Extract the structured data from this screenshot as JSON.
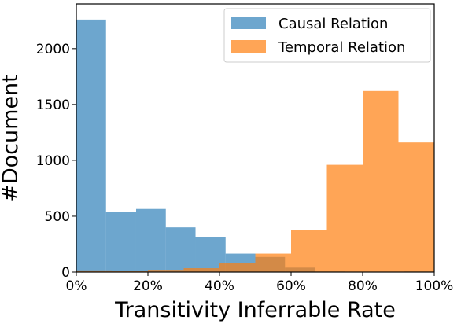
{
  "chart_data": {
    "type": "histogram",
    "xlabel": "Transitivity Inferrable Rate",
    "ylabel": "#Document",
    "xlim": [
      0,
      1
    ],
    "ylim": [
      0,
      2400
    ],
    "x_ticks": [
      {
        "value": 0.0,
        "label": "0%"
      },
      {
        "value": 0.2,
        "label": "20%"
      },
      {
        "value": 0.4,
        "label": "40%"
      },
      {
        "value": 0.6,
        "label": "60%"
      },
      {
        "value": 0.8,
        "label": "80%"
      },
      {
        "value": 1.0,
        "label": "100%"
      }
    ],
    "y_ticks": [
      {
        "value": 0,
        "label": "0"
      },
      {
        "value": 500,
        "label": "500"
      },
      {
        "value": 1000,
        "label": "1000"
      },
      {
        "value": 1500,
        "label": "1500"
      },
      {
        "value": 2000,
        "label": "2000"
      }
    ],
    "legend_position": "top-right",
    "grid": false,
    "series": [
      {
        "name": "Causal Relation",
        "color": "#1f77b4",
        "opacity": 0.65,
        "bins": [
          {
            "start": 0.0,
            "end": 0.083,
            "count": 2260
          },
          {
            "start": 0.083,
            "end": 0.167,
            "count": 540
          },
          {
            "start": 0.167,
            "end": 0.25,
            "count": 565
          },
          {
            "start": 0.25,
            "end": 0.333,
            "count": 400
          },
          {
            "start": 0.333,
            "end": 0.417,
            "count": 310
          },
          {
            "start": 0.417,
            "end": 0.5,
            "count": 165
          },
          {
            "start": 0.5,
            "end": 0.583,
            "count": 135
          },
          {
            "start": 0.583,
            "end": 0.667,
            "count": 40
          },
          {
            "start": 0.667,
            "end": 0.75,
            "count": 5
          },
          {
            "start": 0.75,
            "end": 0.833,
            "count": 2
          },
          {
            "start": 0.833,
            "end": 0.917,
            "count": 1
          },
          {
            "start": 0.917,
            "end": 1.0,
            "count": 5
          }
        ]
      },
      {
        "name": "Temporal Relation",
        "color": "#ff7f0e",
        "opacity": 0.7,
        "bins": [
          {
            "start": 0.0,
            "end": 0.1,
            "count": 15
          },
          {
            "start": 0.1,
            "end": 0.2,
            "count": 12
          },
          {
            "start": 0.2,
            "end": 0.3,
            "count": 20
          },
          {
            "start": 0.3,
            "end": 0.4,
            "count": 35
          },
          {
            "start": 0.4,
            "end": 0.5,
            "count": 80
          },
          {
            "start": 0.5,
            "end": 0.6,
            "count": 165
          },
          {
            "start": 0.6,
            "end": 0.7,
            "count": 375
          },
          {
            "start": 0.7,
            "end": 0.8,
            "count": 960
          },
          {
            "start": 0.8,
            "end": 0.9,
            "count": 1620
          },
          {
            "start": 0.9,
            "end": 1.0,
            "count": 1160
          }
        ]
      }
    ]
  }
}
